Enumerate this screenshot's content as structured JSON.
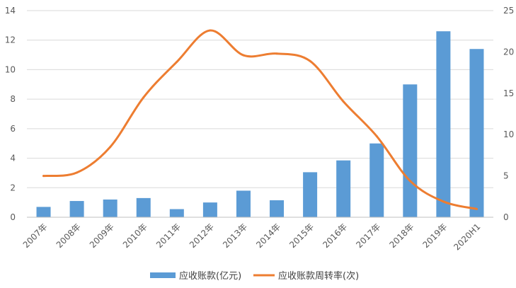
{
  "chart_data": {
    "type": "bar",
    "categories": [
      "2007年",
      "2008年",
      "2009年",
      "2010年",
      "2011年",
      "2012年",
      "2013年",
      "2014年",
      "2015年",
      "2016年",
      "2017年",
      "2018年",
      "2019年",
      "2020H1"
    ],
    "series": [
      {
        "name": "应收账款(亿元)",
        "type": "bar",
        "axis": "left",
        "color": "#5b9bd5",
        "values": [
          0.7,
          1.1,
          1.2,
          1.3,
          0.55,
          1.0,
          1.8,
          1.15,
          3.05,
          3.85,
          5.0,
          9.0,
          12.6,
          11.4
        ]
      },
      {
        "name": "应收账款周转率(次)",
        "type": "line",
        "axis": "right",
        "color": "#ed7d31",
        "values": [
          5.0,
          5.4,
          8.5,
          14.5,
          18.8,
          22.6,
          19.6,
          19.8,
          18.9,
          14.0,
          9.8,
          4.4,
          1.9,
          1.0
        ]
      }
    ],
    "y_left": {
      "min": 0,
      "max": 14,
      "ticks": [
        0,
        2,
        4,
        6,
        8,
        10,
        12,
        14
      ]
    },
    "y_right": {
      "min": 0,
      "max": 25,
      "ticks": [
        0,
        5,
        10,
        15,
        20,
        25
      ]
    },
    "grid": true,
    "legend_position": "bottom"
  }
}
